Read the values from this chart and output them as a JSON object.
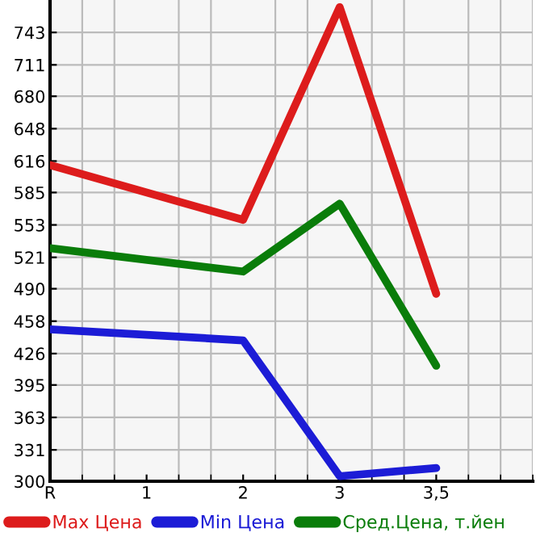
{
  "chart_data": {
    "type": "line",
    "categories": [
      "R",
      "1",
      "2",
      "3",
      "3,5"
    ],
    "series": [
      {
        "name": "Max Цена",
        "color": "#dd1c1c",
        "values": [
          612,
          null,
          558,
          768,
          485
        ]
      },
      {
        "name": "Min Цена",
        "color": "#1c1cd6",
        "values": [
          450,
          null,
          439,
          305,
          313
        ]
      },
      {
        "name": "Сред.Цена, т.йен",
        "color": "#0a7d0a",
        "values": [
          530,
          null,
          507,
          574,
          414
        ]
      }
    ],
    "ylim": [
      300,
      775
    ],
    "yticks": [
      300,
      331,
      363,
      395,
      426,
      458,
      490,
      521,
      553,
      585,
      616,
      648,
      680,
      711,
      743
    ],
    "grid": true,
    "legend": "bottom",
    "marker": "none",
    "line_style": "solid"
  }
}
